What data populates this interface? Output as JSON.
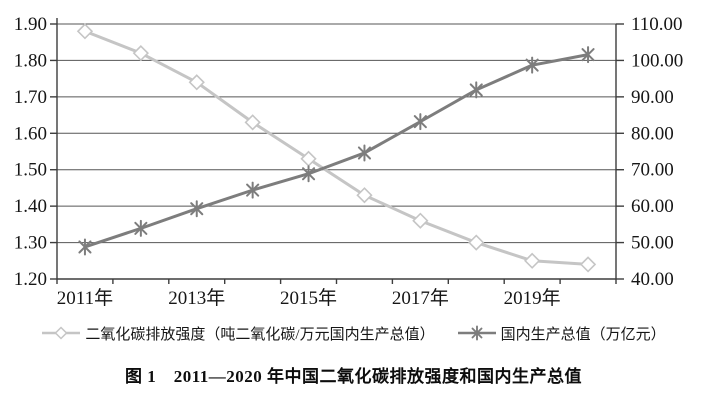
{
  "figure": {
    "caption": "图 1　2011—2020 年中国二氧化碳排放强度和国内生产总值"
  },
  "colors": {
    "co2_series": "#c5c5c5",
    "co2_marker_fill": "#ffffff",
    "gdp_series": "#7d7d7d",
    "gridline": "#565656",
    "axis": "#3d3d3d",
    "text": "#161616",
    "background": "#ffffff"
  },
  "chart_data": {
    "type": "line",
    "title": "图 1　2011—2020 年中国二氧化碳排放强度和国内生产总值",
    "categories": [
      "2011年",
      "2012年",
      "2013年",
      "2014年",
      "2015年",
      "2016年",
      "2017年",
      "2018年",
      "2019年",
      "2020年"
    ],
    "x_tick_labels_shown": [
      "2011年",
      "2013年",
      "2015年",
      "2017年",
      "2019年"
    ],
    "x_label_every": 2,
    "series": [
      {
        "name": "二氧化碳排放强度（吨二氧化碳/万元国内生产总值）",
        "axis": "left",
        "marker": "diamond",
        "color": "#c5c5c5",
        "values": [
          1.88,
          1.82,
          1.74,
          1.63,
          1.53,
          1.43,
          1.36,
          1.3,
          1.25,
          1.24
        ]
      },
      {
        "name": "国内生产总值（万亿元）",
        "axis": "right",
        "marker": "asterisk",
        "color": "#7d7d7d",
        "values": [
          48.8,
          53.9,
          59.3,
          64.4,
          68.9,
          74.6,
          83.2,
          91.9,
          98.7,
          101.6
        ]
      }
    ],
    "left_axis": {
      "min": 1.2,
      "max": 1.9,
      "step": 0.1,
      "tick_labels": [
        "1.20",
        "1.30",
        "1.40",
        "1.50",
        "1.60",
        "1.70",
        "1.80",
        "1.90"
      ]
    },
    "right_axis": {
      "min": 40.0,
      "max": 110.0,
      "step": 10.0,
      "tick_labels": [
        "40.00",
        "50.00",
        "60.00",
        "70.00",
        "80.00",
        "90.00",
        "100.00",
        "110.00"
      ]
    },
    "grid": true,
    "legend_position": "bottom",
    "xlabel": "",
    "ylabel_left": "",
    "ylabel_right": ""
  }
}
